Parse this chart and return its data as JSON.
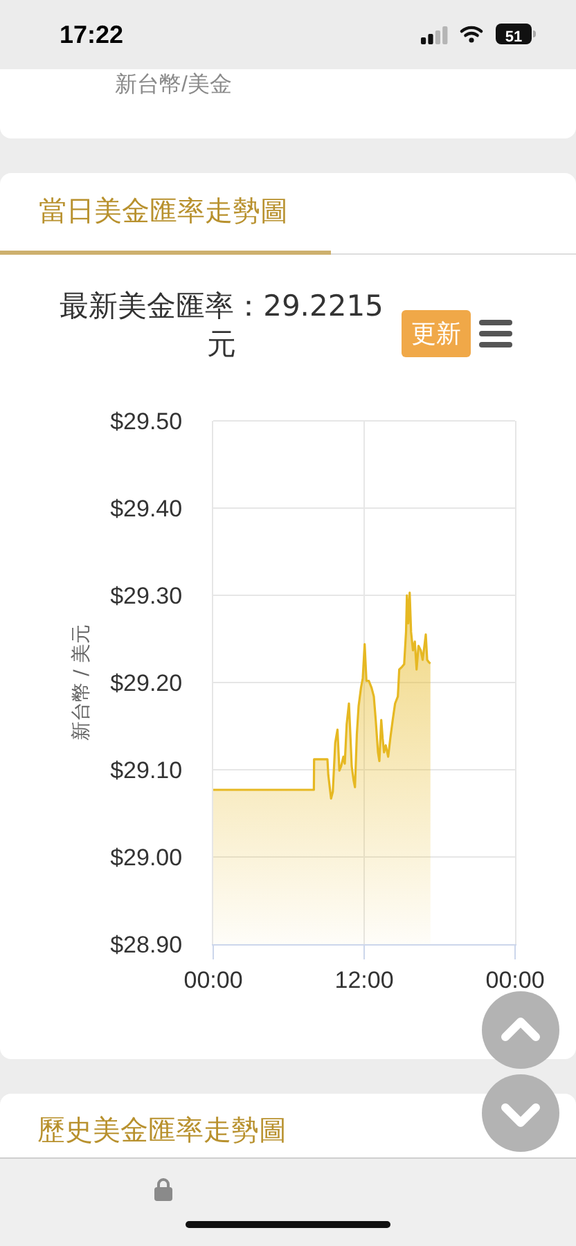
{
  "chart_data": {
    "type": "area",
    "title": "最新美金匯率：29.2215 元",
    "ylabel": "新台幣 / 美元",
    "annotations": [
      "17:22",
      "51",
      "新台幣/美金",
      "當日美金匯率走勢圖",
      "更新",
      "歷史美金匯率走勢圖"
    ],
    "x": [
      0,
      8.0,
      8.02,
      9.08,
      9.15,
      9.37,
      9.51,
      9.7,
      9.88,
      10.03,
      10.17,
      10.35,
      10.46,
      10.61,
      10.79,
      10.9,
      11.01,
      11.16,
      11.27,
      11.42,
      11.56,
      11.75,
      11.89,
      12.04,
      12.18,
      12.37,
      12.59,
      12.77,
      12.92,
      13.1,
      13.21,
      13.36,
      13.47,
      13.58,
      13.72,
      13.91,
      14.08,
      14.27,
      14.46,
      14.68,
      14.79,
      15.01,
      15.18,
      15.33,
      15.4,
      15.51,
      15.62,
      15.73,
      15.88,
      16.03,
      16.17,
      16.32,
      16.5,
      16.65,
      16.79,
      16.9,
      17.01,
      17.16,
      17.27
    ],
    "values": [
      29.077,
      29.077,
      29.112,
      29.112,
      29.094,
      29.067,
      29.075,
      29.131,
      29.146,
      29.099,
      29.104,
      29.115,
      29.107,
      29.152,
      29.176,
      29.141,
      29.104,
      29.088,
      29.08,
      29.141,
      29.173,
      29.194,
      29.205,
      29.244,
      29.202,
      29.202,
      29.194,
      29.184,
      29.157,
      29.12,
      29.11,
      29.157,
      29.136,
      29.12,
      29.128,
      29.115,
      29.136,
      29.157,
      29.176,
      29.184,
      29.215,
      29.218,
      29.221,
      29.258,
      29.3,
      29.268,
      29.303,
      29.258,
      29.237,
      29.247,
      29.215,
      29.242,
      29.237,
      29.226,
      29.242,
      29.255,
      29.226,
      29.223,
      29.222
    ],
    "color": "#e6b822",
    "xlim": [
      0,
      24
    ],
    "xticks": [
      {
        "value": 0,
        "label": "00:00"
      },
      {
        "value": 12,
        "label": "12:00"
      },
      {
        "value": 24,
        "label": "00:00"
      }
    ],
    "ylim": [
      28.9,
      29.5
    ],
    "yticks": [
      {
        "value": 28.9,
        "label": "$28.90"
      },
      {
        "value": 29.0,
        "label": "$29.00"
      },
      {
        "value": 29.1,
        "label": "$29.10"
      },
      {
        "value": 29.2,
        "label": "$29.20"
      },
      {
        "value": 29.3,
        "label": "$29.30"
      },
      {
        "value": 29.4,
        "label": "$29.40"
      },
      {
        "value": 29.5,
        "label": "$29.50"
      }
    ],
    "grid": true
  }
}
